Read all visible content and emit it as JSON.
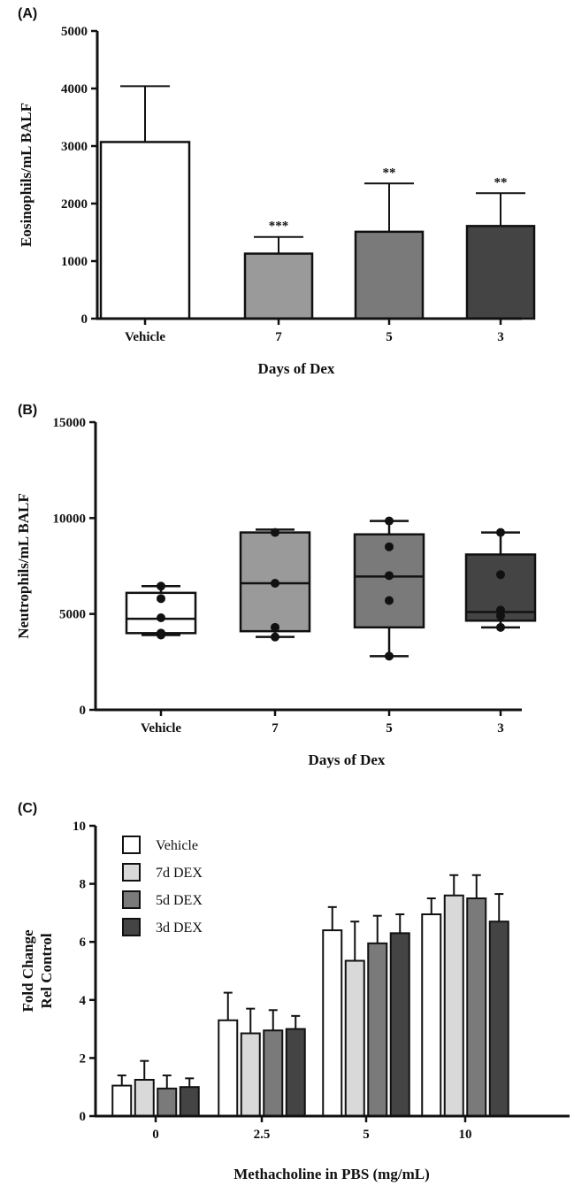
{
  "chart_data": [
    {
      "panel": "(A)",
      "type": "bar",
      "categories": [
        "Vehicle",
        "7",
        "5",
        "3"
      ],
      "values": [
        3070,
        1130,
        1510,
        1610
      ],
      "errors": [
        970,
        290,
        840,
        570
      ],
      "significance": [
        "",
        "***",
        "**",
        "**"
      ],
      "colors": [
        "#ffffff",
        "#9a9a9a",
        "#7a7a7a",
        "#444444"
      ],
      "xlabel": "Days of Dex",
      "ylabel": "Eosinophils/mL BALF",
      "ylim": [
        0,
        5000
      ],
      "yticks": [
        "0",
        "1000",
        "2000",
        "3000",
        "4000",
        "5000"
      ],
      "grid": false
    },
    {
      "panel": "(B)",
      "type": "box",
      "categories": [
        "Vehicle",
        "7",
        "5",
        "3"
      ],
      "boxes": [
        {
          "min": 3900,
          "q1": 4000,
          "median": 4750,
          "q3": 6100,
          "max": 6450
        },
        {
          "min": 3800,
          "q1": 4100,
          "median": 6600,
          "q3": 9250,
          "max": 9400
        },
        {
          "min": 2800,
          "q1": 4300,
          "median": 6950,
          "q3": 9150,
          "max": 9850
        },
        {
          "min": 4300,
          "q1": 4650,
          "median": 5100,
          "q3": 8100,
          "max": 9250
        }
      ],
      "points": [
        [
          6450,
          5800,
          4800,
          4000,
          3900
        ],
        [
          9250,
          6600,
          4300,
          3800
        ],
        [
          9850,
          8500,
          7000,
          5700,
          2800
        ],
        [
          9250,
          7050,
          5200,
          4900,
          4300
        ]
      ],
      "colors": [
        "#ffffff",
        "#9a9a9a",
        "#7a7a7a",
        "#444444"
      ],
      "xlabel": "Days of Dex",
      "ylabel": "Neutrophils/mL BALF",
      "ylim": [
        0,
        15000
      ],
      "yticks": [
        "0",
        "5000",
        "10000",
        "15000"
      ],
      "grid": false
    },
    {
      "panel": "(C)",
      "type": "bar",
      "categories": [
        "0",
        "2.5",
        "5",
        "10"
      ],
      "series": [
        {
          "name": "Vehicle",
          "color": "#ffffff",
          "values": [
            1.05,
            3.3,
            6.4,
            6.95
          ],
          "errors": [
            0.35,
            0.95,
            0.8,
            0.55
          ]
        },
        {
          "name": "7d DEX",
          "color": "#d9d9d9",
          "values": [
            1.25,
            2.85,
            5.35,
            7.6
          ],
          "errors": [
            0.65,
            0.85,
            1.35,
            0.7
          ]
        },
        {
          "name": "5d DEX",
          "color": "#7a7a7a",
          "values": [
            0.95,
            2.95,
            5.95,
            7.5
          ],
          "errors": [
            0.45,
            0.7,
            0.95,
            0.8
          ]
        },
        {
          "name": "3d DEX",
          "color": "#444444",
          "values": [
            1.0,
            3.0,
            6.3,
            6.7
          ],
          "errors": [
            0.3,
            0.45,
            0.65,
            0.95
          ]
        }
      ],
      "xlabel": "Methacholine in PBS (mg/mL)",
      "ylabel": [
        "Fold Change",
        "Rel Control"
      ],
      "ylim": [
        0,
        10
      ],
      "yticks": [
        "0",
        "2",
        "4",
        "6",
        "8",
        "10"
      ],
      "legend": "top-left",
      "grid": false
    }
  ]
}
